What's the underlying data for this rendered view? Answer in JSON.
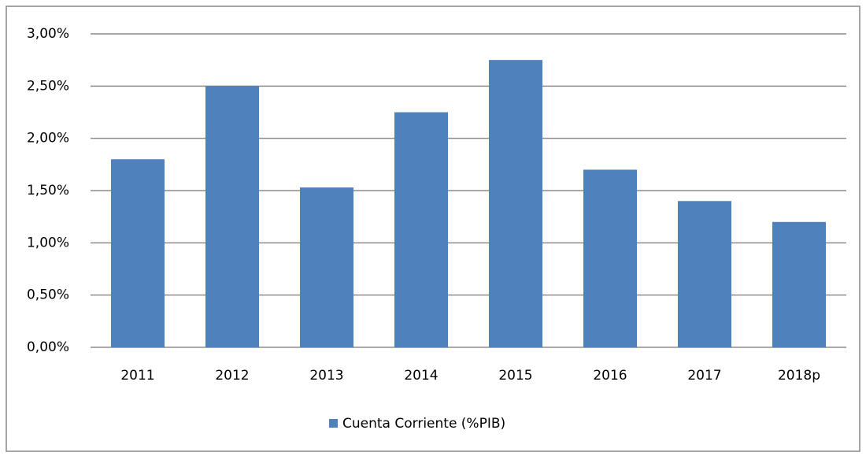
{
  "chart_data": {
    "type": "bar",
    "categories": [
      "2011",
      "2012",
      "2013",
      "2014",
      "2015",
      "2016",
      "2017",
      "2018p"
    ],
    "series": [
      {
        "name": "Cuenta Corriente (%PIB)",
        "color": "#4f81bd",
        "values": [
          1.8,
          2.5,
          1.53,
          2.25,
          2.75,
          1.7,
          1.4,
          1.2
        ]
      }
    ],
    "ylim": [
      0,
      3
    ],
    "yticks": [
      {
        "value": 0,
        "label": "0,00%"
      },
      {
        "value": 0.5,
        "label": "0,50%"
      },
      {
        "value": 1,
        "label": "1,00%"
      },
      {
        "value": 1.5,
        "label": "1,50%"
      },
      {
        "value": 2,
        "label": "2,00%"
      },
      {
        "value": 2.5,
        "label": "2,50%"
      },
      {
        "value": 3,
        "label": "3,00%"
      }
    ],
    "grid": true,
    "legend": "bottom"
  }
}
